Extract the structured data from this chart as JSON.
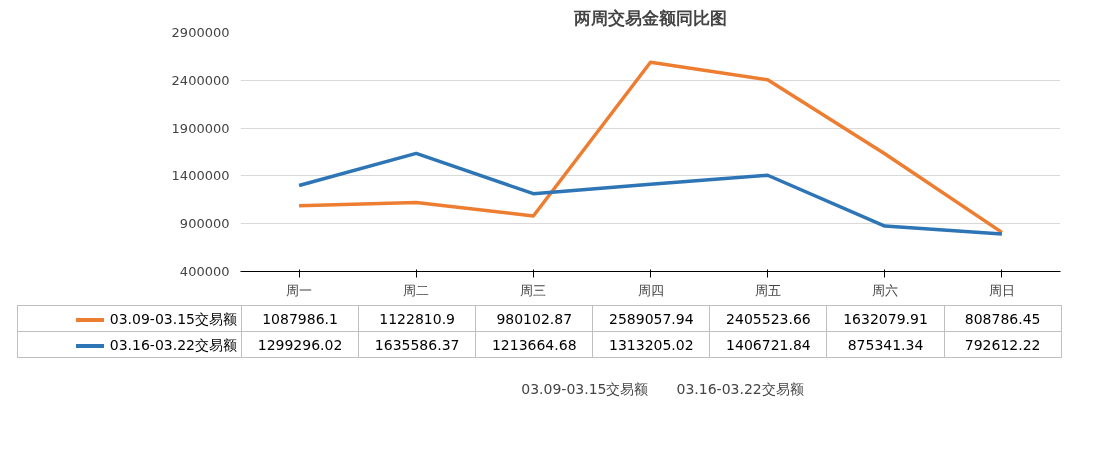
{
  "chart_data": {
    "type": "line",
    "title": "两周交易金额同比图",
    "categories": [
      "周一",
      "周二",
      "周三",
      "周四",
      "周五",
      "周六",
      "周日"
    ],
    "series": [
      {
        "name": "03.09-03.15交易额",
        "color": "#ed7d31",
        "values": [
          1087986.1,
          1122810.9,
          980102.87,
          2589057.94,
          2405523.66,
          1632079.91,
          808786.45
        ]
      },
      {
        "name": "03.16-03.22交易额",
        "color": "#2e75b6",
        "values": [
          1299296.02,
          1635586.37,
          1213664.68,
          1313205.02,
          1406721.84,
          875341.34,
          792612.22
        ]
      }
    ],
    "ylim": [
      400000,
      2900000
    ],
    "yticks": [
      400000,
      900000,
      1400000,
      1900000,
      2400000,
      2900000
    ],
    "grid": "y",
    "legend": "bottom",
    "data_labels": true,
    "marker": "none",
    "line_style": "solid"
  }
}
